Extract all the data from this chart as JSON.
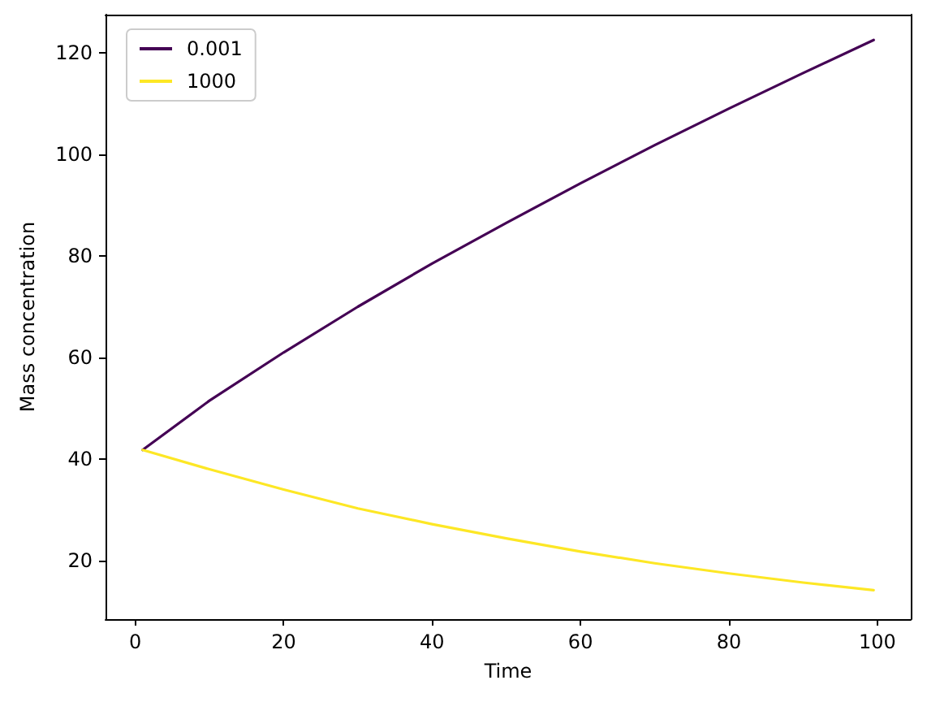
{
  "chart_data": {
    "type": "line",
    "xlabel": "Time",
    "ylabel": "Mass concentration",
    "x": [
      1,
      10,
      20,
      30,
      40,
      50,
      60,
      70,
      80,
      90,
      99.5
    ],
    "series": [
      {
        "name": "0.001",
        "color": "#440154",
        "values": [
          41.8,
          51.5,
          61,
          70,
          78.5,
          86.5,
          94.3,
          101.8,
          109,
          116,
          122.5
        ]
      },
      {
        "name": "1000",
        "color": "#fde725",
        "values": [
          41.8,
          38,
          34,
          30.3,
          27.2,
          24.4,
          21.8,
          19.5,
          17.5,
          15.7,
          14.2
        ]
      }
    ],
    "xlim": [
      -4,
      104.5
    ],
    "ylim": [
      8.5,
      127.5
    ],
    "xticks": [
      0,
      20,
      40,
      60,
      80,
      100
    ],
    "yticks": [
      20,
      40,
      60,
      80,
      100,
      120
    ],
    "grid": false,
    "legend": "top left",
    "marker": "none",
    "line_style": "solid"
  }
}
